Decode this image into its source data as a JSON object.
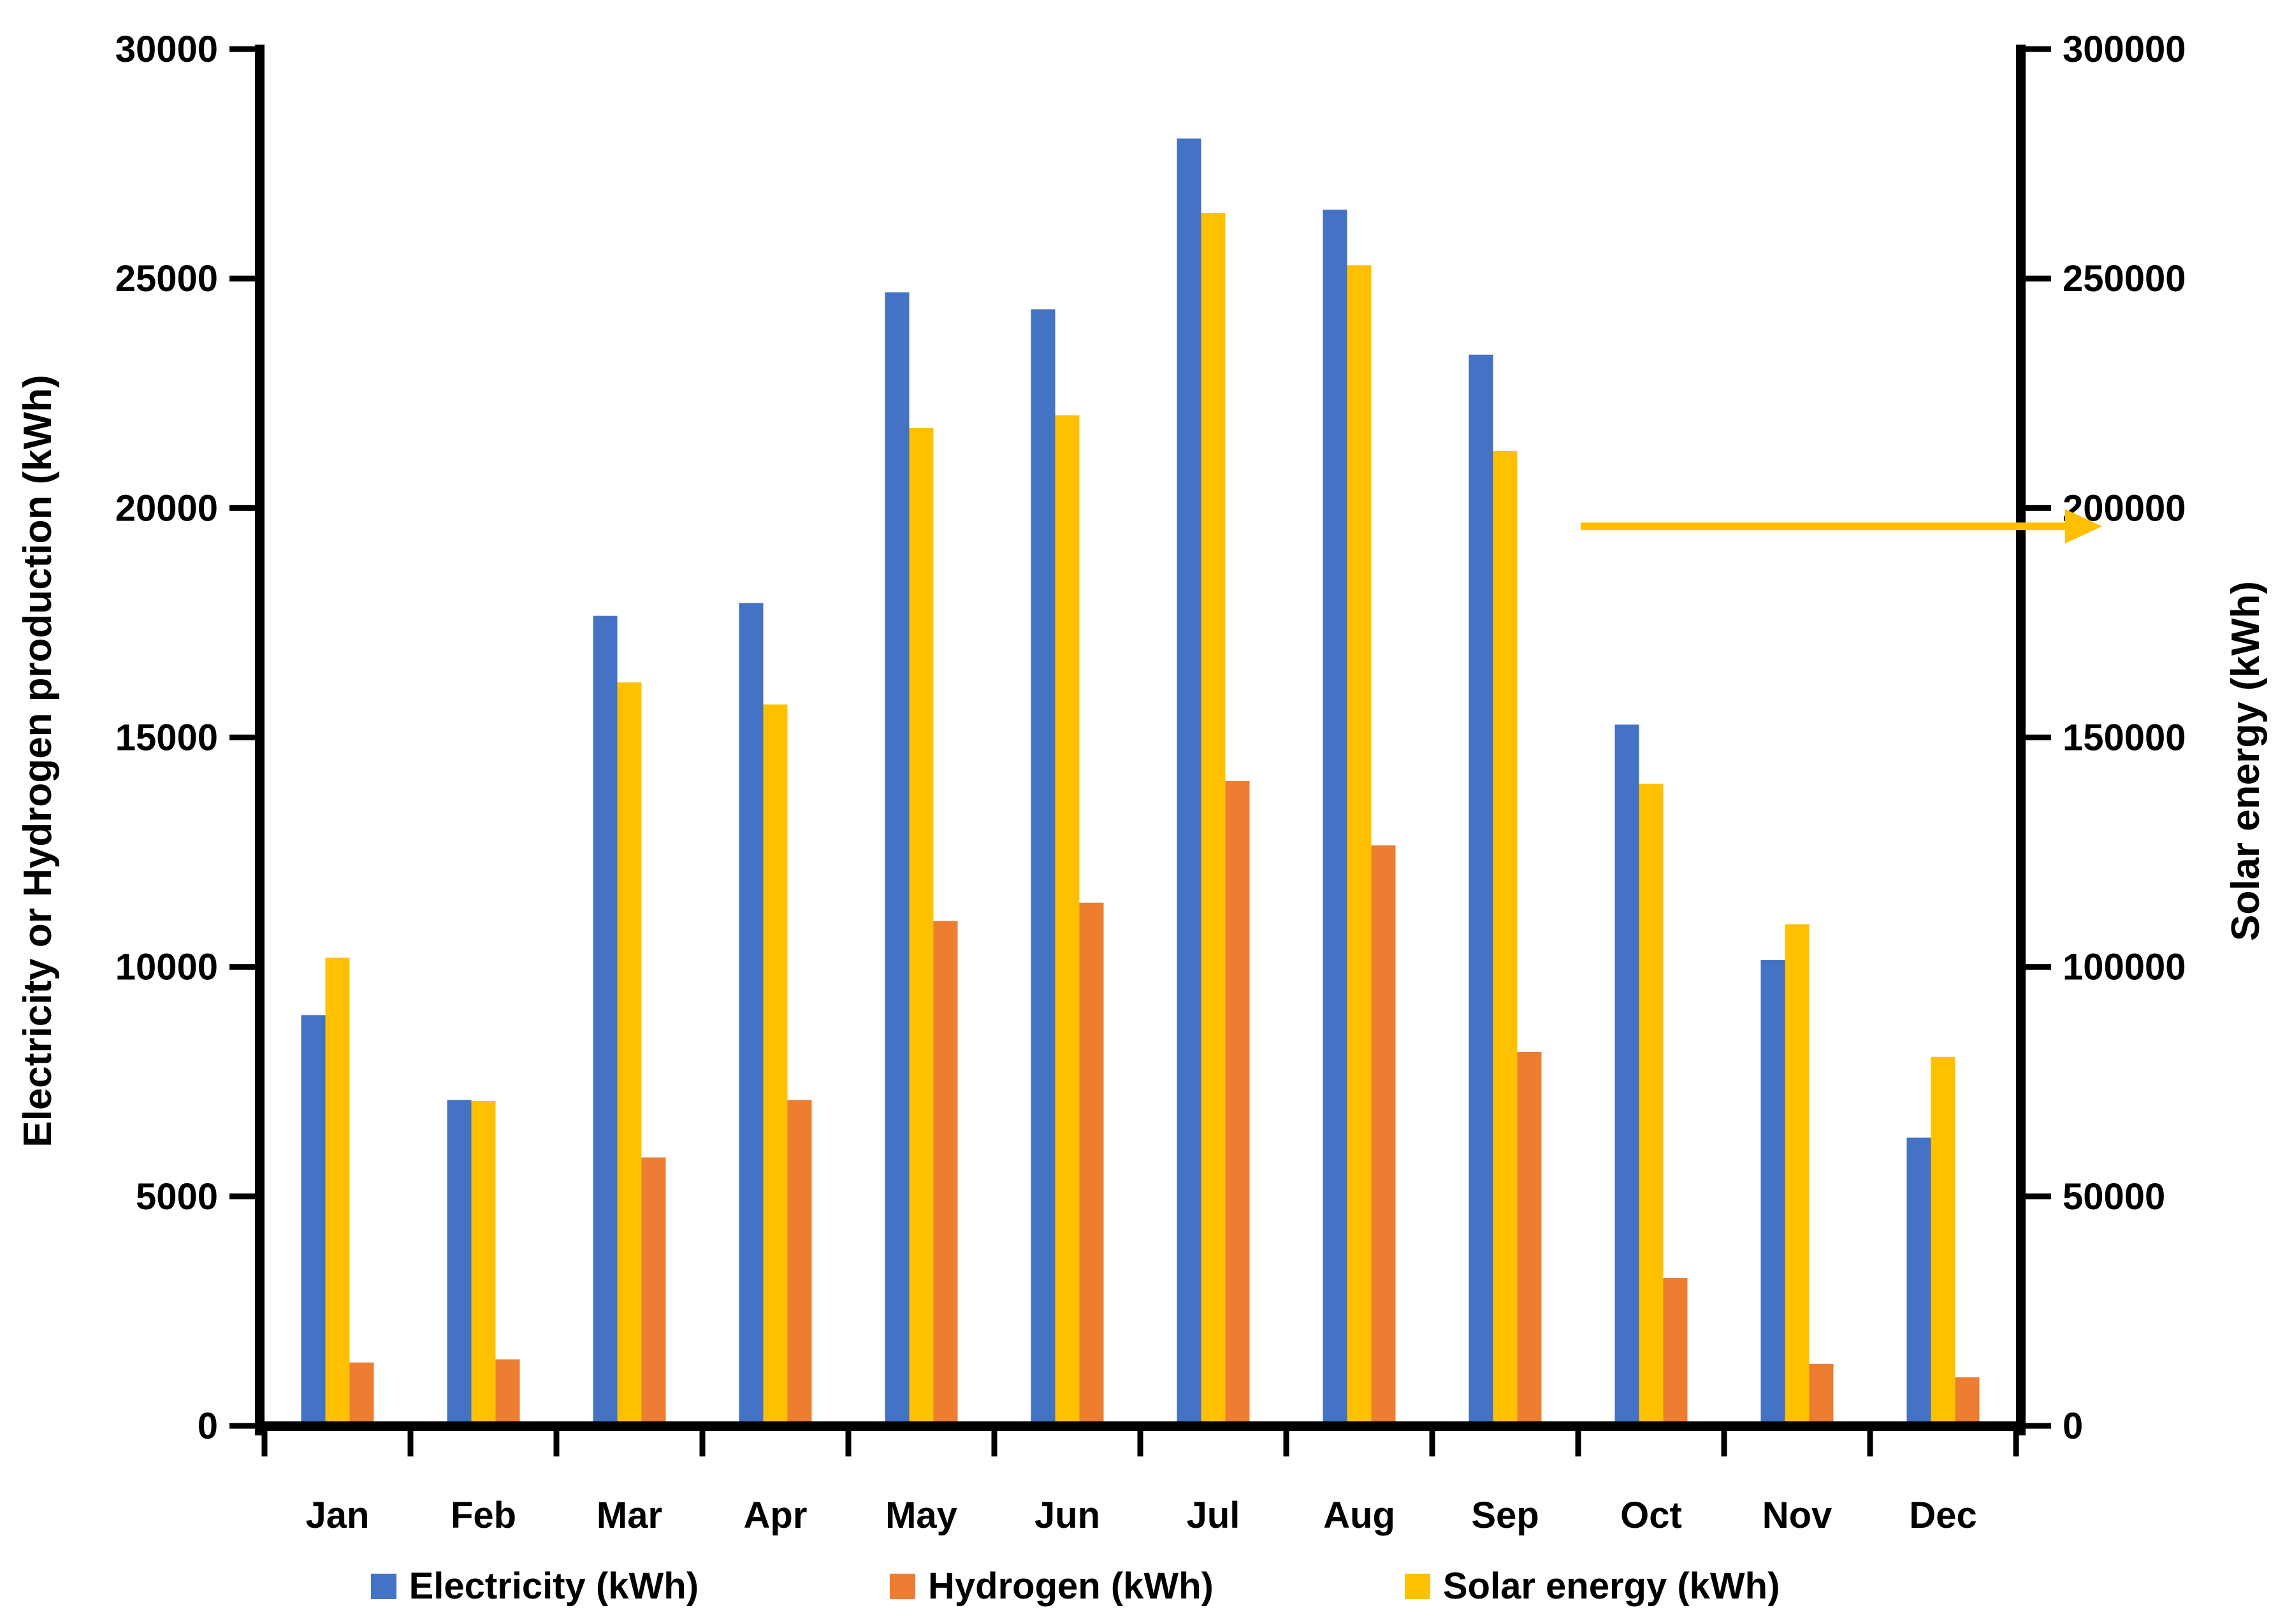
{
  "chart_data": {
    "type": "bar",
    "title": "",
    "categories": [
      "Jan",
      "Feb",
      "Mar",
      "Apr",
      "May",
      "Jun",
      "Jul",
      "Aug",
      "Sep",
      "Oct",
      "Nov",
      "Dec"
    ],
    "series": [
      {
        "name": "Electricity (kWh)",
        "axis": "left",
        "color": "#4472C4",
        "values": [
          8950,
          7100,
          17650,
          17930,
          24700,
          24330,
          28050,
          26500,
          23340,
          15280,
          10150,
          6280
        ]
      },
      {
        "name": "Hydrogen (kWh)",
        "axis": "left",
        "color": "#ED7D31",
        "values": [
          1380,
          1450,
          5850,
          7100,
          11000,
          11400,
          14050,
          12650,
          8150,
          3220,
          1350,
          1060
        ]
      },
      {
        "name": "Solar energy (kWh)",
        "axis": "right",
        "color": "#FFC000",
        "values": [
          102000,
          70800,
          162000,
          157200,
          217400,
          220200,
          264300,
          252900,
          212400,
          139900,
          109300,
          80400
        ]
      }
    ],
    "bar_plot_order": [
      0,
      2,
      1
    ],
    "xlabel": "",
    "ylabel_left": "Electricity or Hydrogen production (kWh)",
    "ylabel_right": "Solar energy (kWh)",
    "ylim_left": [
      0,
      30000
    ],
    "ytick_step_left": 5000,
    "yticks_left": [
      "0",
      "5000",
      "10000",
      "15000",
      "20000",
      "25000",
      "30000"
    ],
    "ylim_right": [
      0,
      300000
    ],
    "ytick_step_right": 50000,
    "yticks_right": [
      "0",
      "50000",
      "100000",
      "150000",
      "200000",
      "250000",
      "300000"
    ],
    "grid": false,
    "legend_position": "bottom",
    "annotation": {
      "type": "arrow",
      "color": "#FFC000",
      "direction": "right",
      "meaning": "Solar energy read on right axis",
      "y_value_right": 196000
    }
  },
  "legend": {
    "items": [
      {
        "label": "Electricity (kWh)",
        "color": "#4472C4"
      },
      {
        "label": "Hydrogen (kWh)",
        "color": "#ED7D31"
      },
      {
        "label": "Solar energy (kWh)",
        "color": "#FFC000"
      }
    ]
  }
}
